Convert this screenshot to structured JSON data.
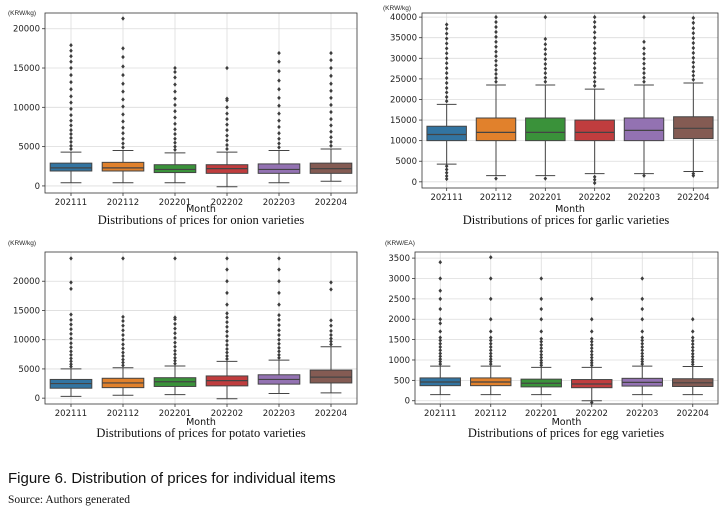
{
  "figure_caption": "Figure 6. Distribution of prices for individual items",
  "source": "Source: Authors generated",
  "colors": [
    "#3274a1",
    "#e1812c",
    "#3a923a",
    "#c03d3e",
    "#9372b2",
    "#845b53"
  ],
  "chart_data": [
    {
      "type": "box",
      "caption": "Distributions of prices for onion varieties",
      "unit": "(KRW/kg)",
      "xlabel": "Month",
      "categories": [
        "202111",
        "202112",
        "202201",
        "202202",
        "202203",
        "202204"
      ],
      "ylim": [
        -900,
        22000
      ],
      "yticks": [
        0,
        5000,
        10000,
        15000,
        20000
      ],
      "boxes": [
        {
          "whislo": 400,
          "q1": 1900,
          "med": 2300,
          "q3": 2900,
          "whishi": 4300,
          "fliers": [
            4700,
            5100,
            5600,
            6100,
            6600,
            7100,
            7700,
            8300,
            9000,
            9800,
            10600,
            11400,
            12300,
            13200,
            14100,
            15000,
            15800,
            16500,
            17200,
            17900
          ]
        },
        {
          "whislo": 400,
          "q1": 1900,
          "med": 2300,
          "q3": 3000,
          "whishi": 4500,
          "fliers": [
            4900,
            5400,
            6000,
            6700,
            7400,
            8200,
            9100,
            10100,
            11000,
            12000,
            13000,
            14100,
            15200,
            16400,
            17500,
            21300
          ]
        },
        {
          "whislo": 400,
          "q1": 1700,
          "med": 2100,
          "q3": 2700,
          "whishi": 4200,
          "fliers": [
            4600,
            5000,
            5500,
            6000,
            6600,
            7200,
            7900,
            8700,
            9500,
            10300,
            11100,
            12000,
            12900,
            13800,
            14500,
            15000
          ]
        },
        {
          "whislo": -100,
          "q1": 1600,
          "med": 2200,
          "q3": 2700,
          "whishi": 4300,
          "fliers": [
            4700,
            5200,
            5800,
            6400,
            7100,
            7800,
            8500,
            9200,
            10000,
            10900,
            11100,
            15000
          ]
        },
        {
          "whislo": 400,
          "q1": 1600,
          "med": 2100,
          "q3": 2800,
          "whishi": 4500,
          "fliers": [
            4900,
            5400,
            6000,
            6700,
            7500,
            8300,
            9200,
            10200,
            11200,
            12300,
            13400,
            14600,
            15800,
            16900
          ]
        },
        {
          "whislo": 600,
          "q1": 1600,
          "med": 2200,
          "q3": 2900,
          "whishi": 4700,
          "fliers": [
            5100,
            5600,
            6200,
            6900,
            7700,
            8500,
            9400,
            10300,
            11200,
            12100,
            13000,
            14000,
            15000,
            16000,
            16900
          ]
        }
      ]
    },
    {
      "type": "box",
      "caption": "Distributions of prices for garlic varieties",
      "unit": "(KRW/kg)",
      "xlabel": "Month",
      "categories": [
        "202111",
        "202112",
        "202201",
        "202202",
        "202203",
        "202204"
      ],
      "ylim": [
        -1500,
        41000
      ],
      "yticks": [
        0,
        5000,
        10000,
        15000,
        20000,
        25000,
        30000,
        35000,
        40000
      ],
      "boxes": [
        {
          "whislo": 4300,
          "q1": 10000,
          "med": 11500,
          "q3": 13500,
          "whishi": 18800,
          "fliers": [
            700,
            1400,
            2200,
            3000,
            3800,
            19600,
            20600,
            21700,
            22800,
            24000,
            25200,
            26400,
            27600,
            28800,
            30000,
            31200,
            32400,
            33600,
            34800,
            36000,
            37200,
            38200
          ]
        },
        {
          "whislo": 1500,
          "q1": 10000,
          "med": 12000,
          "q3": 15500,
          "whishi": 23500,
          "fliers": [
            800,
            24300,
            25200,
            26200,
            27200,
            28300,
            29400,
            30500,
            31600,
            32800,
            34000,
            35200,
            36400,
            37600,
            38800,
            40000
          ]
        },
        {
          "whislo": 1500,
          "q1": 10000,
          "med": 12000,
          "q3": 15500,
          "whishi": 23500,
          "fliers": [
            800,
            24300,
            25300,
            26400,
            27500,
            28600,
            29800,
            31000,
            32200,
            33400,
            34700,
            40000
          ]
        },
        {
          "whislo": 2000,
          "q1": 10000,
          "med": 12000,
          "q3": 15000,
          "whishi": 22500,
          "fliers": [
            -300,
            500,
            1200,
            23300,
            24300,
            25400,
            26500,
            27600,
            28800,
            30000,
            31200,
            32400,
            33700,
            35000,
            36300,
            37600,
            38800,
            40000
          ]
        },
        {
          "whislo": 2000,
          "q1": 10000,
          "med": 12500,
          "q3": 15500,
          "whishi": 23500,
          "fliers": [
            1500,
            24300,
            25300,
            26400,
            27500,
            28700,
            29900,
            31100,
            32400,
            34000,
            40000
          ]
        },
        {
          "whislo": 2500,
          "q1": 10500,
          "med": 13000,
          "q3": 15800,
          "whishi": 24000,
          "fliers": [
            1500,
            2000,
            24800,
            25800,
            26800,
            27900,
            29000,
            30100,
            31300,
            32500,
            33700,
            34900,
            36100,
            37300,
            38600,
            39800
          ]
        }
      ]
    },
    {
      "type": "box",
      "caption": "Distributions of prices for potato varieties",
      "unit": "(KRW/kg)",
      "xlabel": "Month",
      "categories": [
        "202111",
        "202112",
        "202201",
        "202202",
        "202203",
        "202204"
      ],
      "ylim": [
        -1000,
        25000
      ],
      "yticks": [
        0,
        5000,
        10000,
        15000,
        20000
      ],
      "boxes": [
        {
          "whislo": 300,
          "q1": 1700,
          "med": 2500,
          "q3": 3200,
          "whishi": 5000,
          "fliers": [
            5400,
            5800,
            6300,
            6800,
            7400,
            8000,
            8700,
            9400,
            10200,
            11000,
            11800,
            12600,
            13400,
            14300,
            18700,
            19800,
            23900
          ]
        },
        {
          "whislo": 500,
          "q1": 1800,
          "med": 2600,
          "q3": 3400,
          "whishi": 5200,
          "fliers": [
            5600,
            6100,
            6600,
            7200,
            7800,
            8500,
            9200,
            10000,
            10800,
            11600,
            12400,
            13200,
            13900,
            23900
          ]
        },
        {
          "whislo": 600,
          "q1": 2000,
          "med": 2800,
          "q3": 3500,
          "whishi": 5500,
          "fliers": [
            5900,
            6400,
            6900,
            7500,
            8100,
            8800,
            9500,
            10300,
            11100,
            11900,
            12700,
            13500,
            13800,
            23900
          ]
        },
        {
          "whislo": -100,
          "q1": 2100,
          "med": 3000,
          "q3": 3800,
          "whishi": 6300,
          "fliers": [
            6700,
            7200,
            7800,
            8400,
            9100,
            9800,
            10600,
            11400,
            12200,
            13000,
            13800,
            14500,
            16000,
            18000,
            20000,
            22000,
            23900
          ]
        },
        {
          "whislo": 800,
          "q1": 2400,
          "med": 3200,
          "q3": 4000,
          "whishi": 6500,
          "fliers": [
            6900,
            7400,
            8000,
            8600,
            9300,
            10000,
            10800,
            11600,
            12500,
            13400,
            14200,
            16000,
            18000,
            20000,
            22000,
            23900
          ]
        },
        {
          "whislo": 900,
          "q1": 2600,
          "med": 3600,
          "q3": 4800,
          "whishi": 8800,
          "fliers": [
            9200,
            9700,
            10200,
            10800,
            11500,
            12400,
            13300,
            18600,
            19800
          ]
        }
      ]
    },
    {
      "type": "box",
      "caption": "Distributions of prices for egg varieties",
      "unit": "(KRW/EA)",
      "xlabel": "Month",
      "categories": [
        "202111",
        "202112",
        "202201",
        "202202",
        "202203",
        "202204"
      ],
      "ylim": [
        -80,
        3650
      ],
      "yticks": [
        0,
        500,
        1000,
        1500,
        2000,
        2500,
        3000,
        3500
      ],
      "boxes": [
        {
          "whislo": 150,
          "q1": 370,
          "med": 460,
          "q3": 560,
          "whishi": 850,
          "fliers": [
            900,
            960,
            1020,
            1090,
            1160,
            1240,
            1320,
            1400,
            1480,
            1550,
            1700,
            1900,
            2000,
            2250,
            2500,
            2700,
            3000,
            3400
          ]
        },
        {
          "whislo": 150,
          "q1": 370,
          "med": 460,
          "q3": 560,
          "whishi": 850,
          "fliers": [
            900,
            960,
            1020,
            1090,
            1160,
            1240,
            1320,
            1400,
            1480,
            1550,
            1700,
            2000,
            2500,
            3000,
            3520
          ]
        },
        {
          "whislo": 150,
          "q1": 340,
          "med": 430,
          "q3": 530,
          "whishi": 820,
          "fliers": [
            870,
            930,
            990,
            1060,
            1130,
            1210,
            1290,
            1370,
            1450,
            1520,
            1700,
            2000,
            2250,
            2500,
            3000
          ]
        },
        {
          "whislo": 0,
          "q1": 320,
          "med": 410,
          "q3": 520,
          "whishi": 820,
          "fliers": [
            -40,
            870,
            930,
            990,
            1060,
            1130,
            1210,
            1290,
            1370,
            1450,
            1520,
            1700,
            2000,
            2500
          ]
        },
        {
          "whislo": 150,
          "q1": 360,
          "med": 450,
          "q3": 550,
          "whishi": 850,
          "fliers": [
            900,
            960,
            1020,
            1090,
            1160,
            1240,
            1320,
            1400,
            1480,
            1550,
            1700,
            2000,
            2250,
            2500,
            3000
          ]
        },
        {
          "whislo": 150,
          "q1": 350,
          "med": 440,
          "q3": 540,
          "whishi": 840,
          "fliers": [
            890,
            950,
            1010,
            1080,
            1150,
            1230,
            1310,
            1390,
            1470,
            1550,
            1700,
            2000
          ]
        }
      ]
    }
  ]
}
